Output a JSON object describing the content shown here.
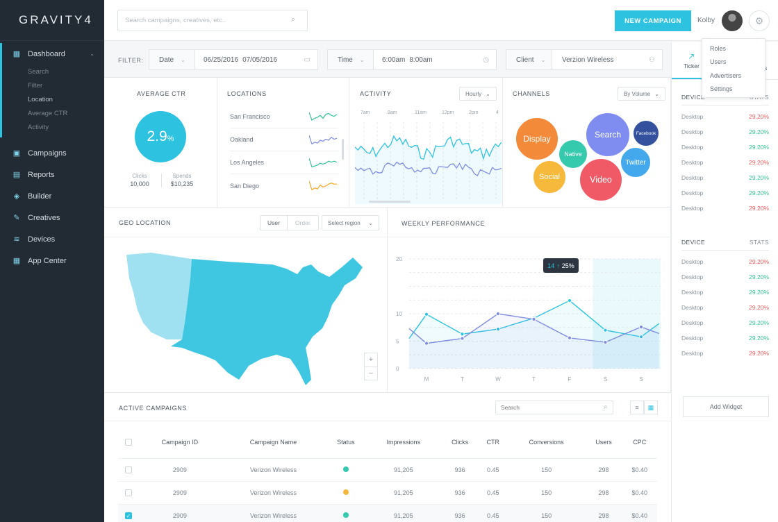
{
  "app": {
    "logo": "GRAVITY4"
  },
  "sidebar": {
    "dashboard": {
      "label": "Dashboard",
      "sub": [
        "Search",
        "Filter",
        "Location",
        "Average CTR",
        "Activity"
      ]
    },
    "items": [
      {
        "label": "Campaigns",
        "icon": "campaigns-icon"
      },
      {
        "label": "Reports",
        "icon": "reports-icon"
      },
      {
        "label": "Builder",
        "icon": "builder-icon"
      },
      {
        "label": "Creatives",
        "icon": "pencil-icon"
      },
      {
        "label": "Devices",
        "icon": "wifi-icon"
      },
      {
        "label": "App Center",
        "icon": "grid-icon"
      }
    ]
  },
  "topbar": {
    "search_placeholder": "Search campaigns, creatives, etc..",
    "new_campaign": "NEW CAMPAIGN",
    "user": "Kolby"
  },
  "settings_menu": [
    "Roles",
    "Users",
    "Advertisers",
    "Settings"
  ],
  "filter": {
    "label": "FILTER:",
    "date_label": "Date",
    "date_from": "06/25/2016",
    "date_to": "07/05/2016",
    "time_label": "Time",
    "time_from": "6:00am",
    "time_to": "8:00am",
    "client_label": "Client",
    "client_value": "Verzion Wireless"
  },
  "avg_ctr": {
    "title": "AVERAGE CTR",
    "value": "2.9",
    "unit": "%",
    "clicks_label": "Clicks",
    "clicks": "10,000",
    "spends_label": "Spends",
    "spends": "$10,235"
  },
  "locations": {
    "title": "LOCATIONS",
    "items": [
      {
        "name": "San Francisco",
        "color": "#33c29a"
      },
      {
        "name": "Oakland",
        "color": "#7f8ce0"
      },
      {
        "name": "Los Angeles",
        "color": "#33c29a"
      },
      {
        "name": "San Diego",
        "color": "#f5a623"
      }
    ]
  },
  "activity": {
    "title": "ACTIVITY",
    "period": "Hourly",
    "hours": [
      "7am",
      "9am",
      "11am",
      "12pm",
      "2pm",
      "4"
    ]
  },
  "channels": {
    "title": "CHANNELS",
    "sort": "By Volume",
    "bubbles": [
      {
        "label": "Display",
        "color": "#f28a3a"
      },
      {
        "label": "Native",
        "color": "#35c9ad"
      },
      {
        "label": "Search",
        "color": "#7f8cf0"
      },
      {
        "label": "Facebook",
        "color": "#34519e"
      },
      {
        "label": "Twitter",
        "color": "#43a8ec"
      },
      {
        "label": "Social",
        "color": "#f6b93b"
      },
      {
        "label": "Video",
        "color": "#f05a67"
      }
    ]
  },
  "geo": {
    "title": "GEO LOCATION",
    "tab_user": "User",
    "tab_order": "Order",
    "region_select": "Select region",
    "zoom_in": "+",
    "zoom_out": "−"
  },
  "weekly": {
    "title": "WEEKLY PERFORMANCE",
    "tooltip_value": "14",
    "tooltip_change": "25%"
  },
  "chart_data": {
    "type": "line",
    "categories": [
      "M",
      "T",
      "W",
      "T",
      "F",
      "S",
      "S"
    ],
    "ylim": [
      0,
      20
    ],
    "yticks": [
      0,
      5,
      10,
      20
    ],
    "series": [
      {
        "color": "#2cc2e0",
        "points": [
          [
            -0.5,
            5.5
          ],
          [
            0,
            9.9
          ],
          [
            1,
            6.3
          ],
          [
            2,
            7.2
          ],
          [
            3,
            9.2
          ],
          [
            4,
            12.4
          ],
          [
            5,
            7
          ],
          [
            6,
            5.8
          ],
          [
            6.5,
            8.2
          ]
        ]
      },
      {
        "color": "#7f8ce0",
        "points": [
          [
            -0.5,
            7.3
          ],
          [
            0,
            4.6
          ],
          [
            1,
            5.5
          ],
          [
            2,
            10
          ],
          [
            3,
            9
          ],
          [
            4,
            5.6
          ],
          [
            5,
            4.8
          ],
          [
            6,
            7.6
          ],
          [
            6.5,
            6.4
          ]
        ]
      }
    ]
  },
  "ticker": {
    "tab": "Ticker",
    "tab2": "s"
  },
  "device_sections": [
    {
      "col1": "DEVICE",
      "col2": "STATS",
      "rows": [
        {
          "d": "Desktop",
          "v": "29.20%",
          "c": "red"
        },
        {
          "d": "Desktop",
          "v": "29.20%",
          "c": "green"
        },
        {
          "d": "Desktop",
          "v": "29.20%",
          "c": "green"
        },
        {
          "d": "Desktop",
          "v": "29.20%",
          "c": "red"
        },
        {
          "d": "Desktop",
          "v": "29.20%",
          "c": "green"
        },
        {
          "d": "Desktop",
          "v": "29.20%",
          "c": "green"
        },
        {
          "d": "Desktop",
          "v": "29.20%",
          "c": "red"
        }
      ]
    },
    {
      "col1": "DEVICE",
      "col2": "STATS",
      "rows": [
        {
          "d": "Desktop",
          "v": "29.20%",
          "c": "red"
        },
        {
          "d": "Desktop",
          "v": "29.20%",
          "c": "green"
        },
        {
          "d": "Desktop",
          "v": "29.20%",
          "c": "green"
        },
        {
          "d": "Desktop",
          "v": "29.20%",
          "c": "red"
        },
        {
          "d": "Desktop",
          "v": "29.20%",
          "c": "green"
        },
        {
          "d": "Desktop",
          "v": "29.20%",
          "c": "green"
        },
        {
          "d": "Desktop",
          "v": "29.20%",
          "c": "red"
        }
      ]
    }
  ],
  "add_widget": "Add Widget",
  "campaigns": {
    "title": "ACTIVE CAMPAIGNS",
    "search_placeholder": "Search",
    "columns": [
      "Campaign ID",
      "Campaign Name",
      "Status",
      "Impressions",
      "Clicks",
      "CTR",
      "Conversions",
      "Users",
      "CPC"
    ],
    "rows": [
      {
        "checked": false,
        "id": "2909",
        "name": "Verizon Wireless",
        "status": "#33c8b0",
        "impressions": "91,205",
        "clicks": "936",
        "ctr": "0.45",
        "conv": "150",
        "users": "298",
        "cpc": "$0.40"
      },
      {
        "checked": false,
        "id": "2909",
        "name": "Verizon Wireless",
        "status": "#f5b73b",
        "impressions": "91,205",
        "clicks": "936",
        "ctr": "0.45",
        "conv": "150",
        "users": "298",
        "cpc": "$0.40"
      },
      {
        "checked": true,
        "id": "2909",
        "name": "Verizon Wireless",
        "status": "#33c8b0",
        "impressions": "91,205",
        "clicks": "936",
        "ctr": "0.45",
        "conv": "150",
        "users": "298",
        "cpc": "$0.40"
      }
    ]
  }
}
